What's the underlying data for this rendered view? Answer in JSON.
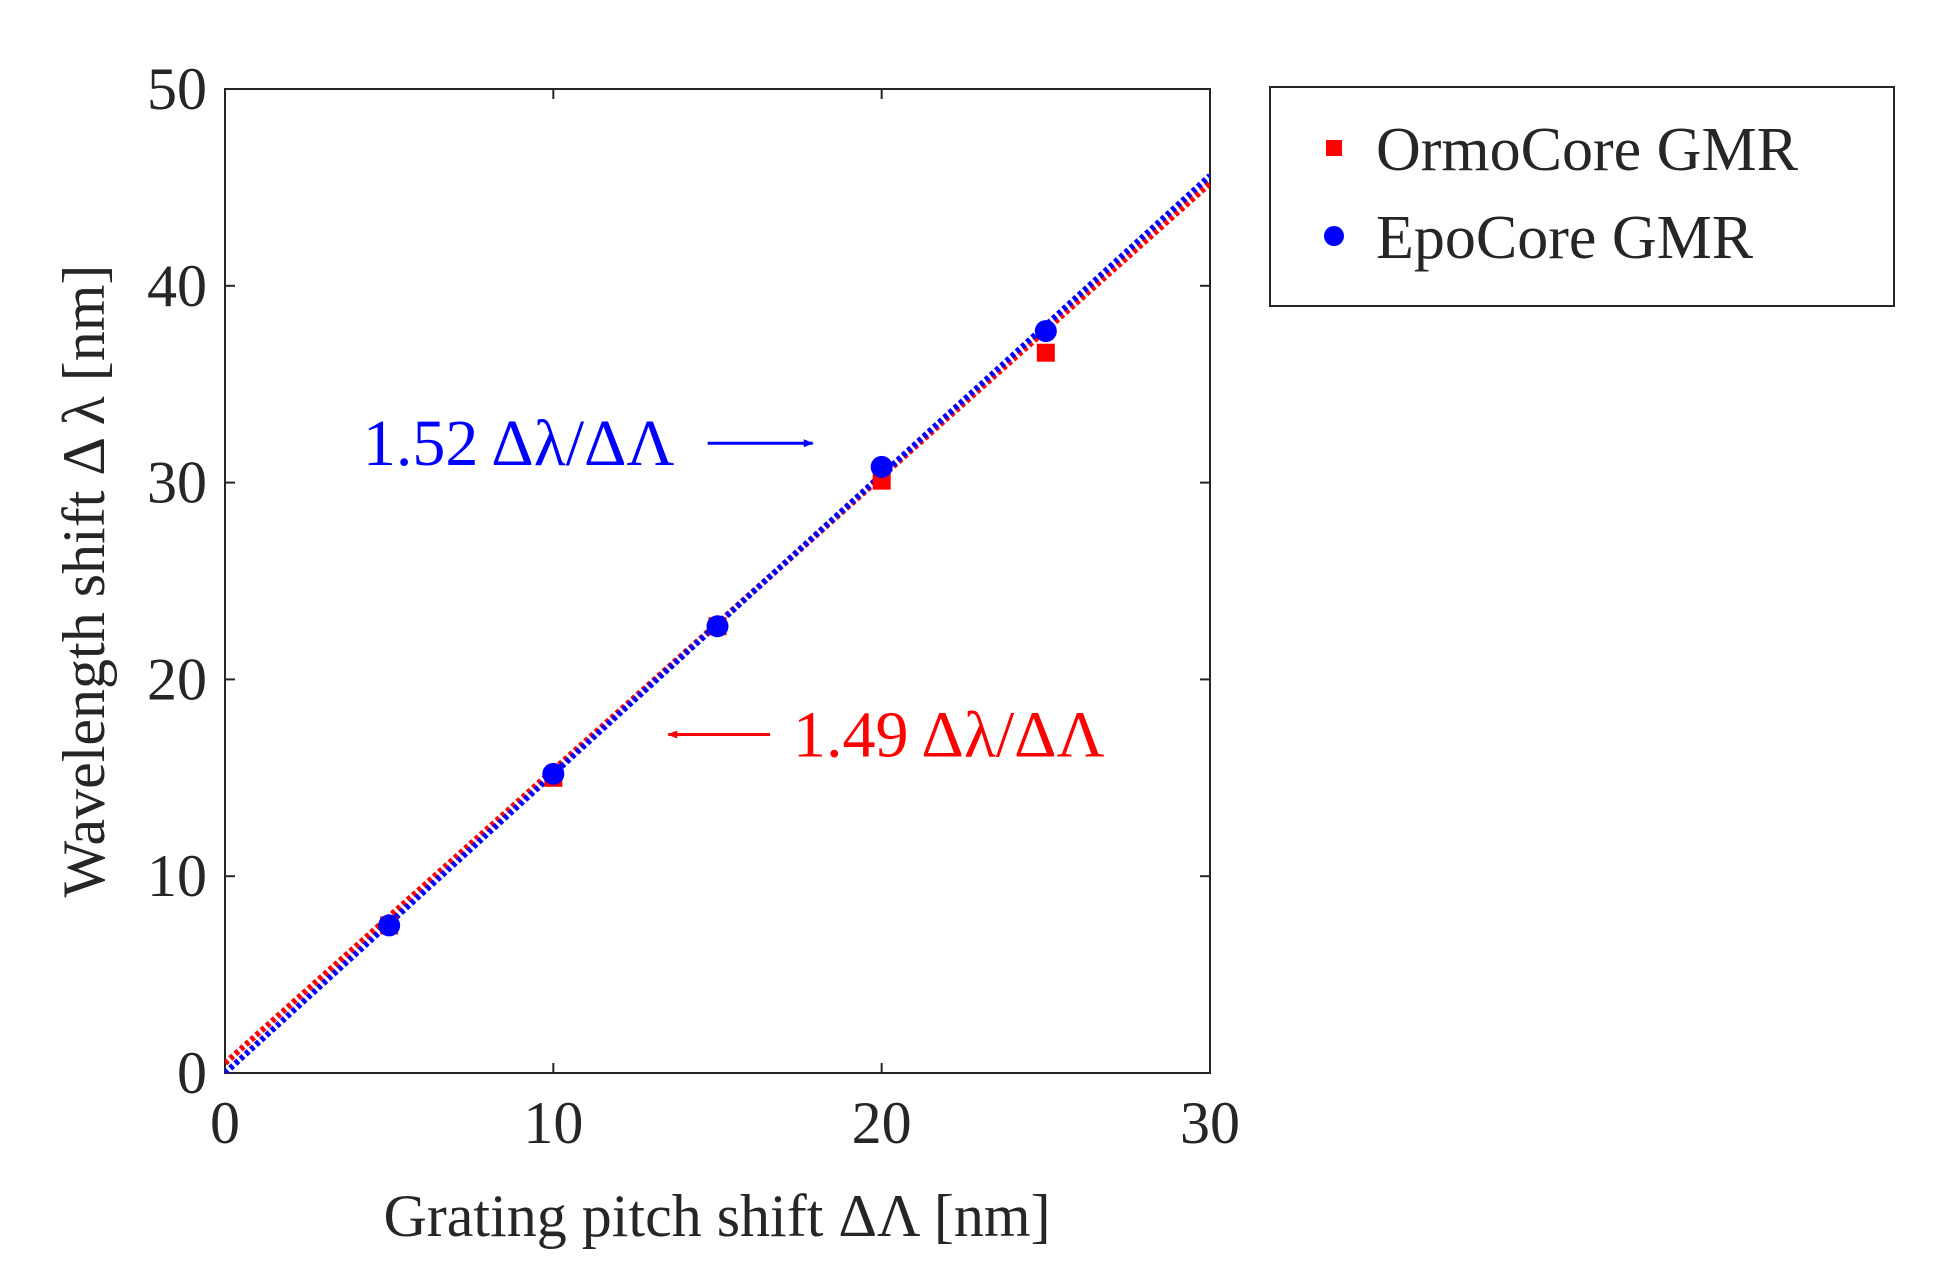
{
  "chart_data": {
    "type": "scatter",
    "xlabel": "Grating pitch shift ΔΛ [nm]",
    "ylabel": "Wavelength shift Δ λ [nm]",
    "xlim": [
      0,
      30
    ],
    "ylim": [
      0,
      50
    ],
    "xticks": [
      0,
      10,
      20,
      30
    ],
    "yticks": [
      0,
      10,
      20,
      30,
      40,
      50
    ],
    "grid": false,
    "legend_position": "outside-top-right",
    "series": [
      {
        "name": "OrmoCore GMR",
        "marker": "square",
        "color": "#ff0000",
        "x": [
          5,
          10,
          15,
          20,
          25
        ],
        "y": [
          7.5,
          15.0,
          22.7,
          30.1,
          36.6
        ],
        "fit": {
          "slope": 1.49,
          "intercept": 0.5,
          "style": "dotted"
        }
      },
      {
        "name": "EpoCore GMR",
        "marker": "circle",
        "color": "#0000ff",
        "x": [
          5,
          10,
          15,
          20,
          25
        ],
        "y": [
          7.5,
          15.2,
          22.7,
          30.8,
          37.7
        ],
        "fit": {
          "slope": 1.52,
          "intercept": 0.0,
          "style": "dotted"
        }
      }
    ],
    "annotations": [
      {
        "name": "epocore-slope",
        "text": "1.52 Δλ/ΔΛ",
        "color": "#0000ff",
        "arrow": "right",
        "text_x": 4.2,
        "y": 32.0,
        "arrow_from_x": 14.7,
        "arrow_to_x": 17.9
      },
      {
        "name": "ormocore-slope",
        "text": "1.49 Δλ/ΔΛ",
        "color": "#ff0000",
        "arrow": "left",
        "text_x": 17.3,
        "y": 17.2,
        "arrow_from_x": 16.6,
        "arrow_to_x": 13.5
      }
    ]
  }
}
